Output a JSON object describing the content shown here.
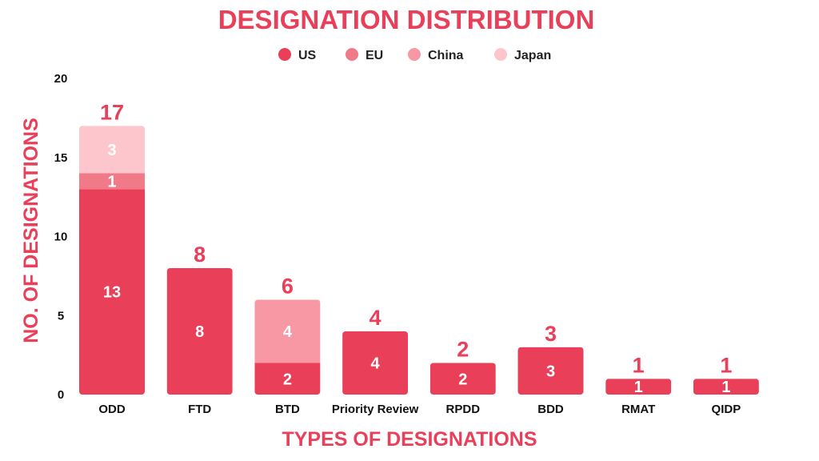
{
  "colors": {
    "accent": "#e8405a",
    "US": "#e93f58",
    "EU": "#f07a88",
    "China": "#f898a4",
    "Japan": "#fdc6cd"
  },
  "chart_data": {
    "type": "bar",
    "stacked": true,
    "title": "DESIGNATION DISTRIBUTION",
    "xlabel": "TYPES OF DESIGNATIONS",
    "ylabel": "NO. OF DESIGNATIONS",
    "ylim": [
      0,
      20
    ],
    "yticks": [
      "0",
      "5",
      "10",
      "15",
      "20"
    ],
    "grid": false,
    "legend_position": "top-center",
    "categories": [
      "ODD",
      "FTD",
      "BTD",
      "Priority Review",
      "RPDD",
      "BDD",
      "RMAT",
      "QIDP"
    ],
    "series": [
      {
        "name": "US",
        "values": [
          13,
          8,
          2,
          4,
          2,
          3,
          1,
          1
        ]
      },
      {
        "name": "EU",
        "values": [
          1,
          0,
          0,
          0,
          0,
          0,
          0,
          0
        ]
      },
      {
        "name": "China",
        "values": [
          0,
          0,
          4,
          0,
          0,
          0,
          0,
          0
        ]
      },
      {
        "name": "Japan",
        "values": [
          3,
          0,
          0,
          0,
          0,
          0,
          0,
          0
        ]
      }
    ],
    "totals": [
      17,
      8,
      6,
      4,
      2,
      3,
      1,
      1
    ]
  }
}
